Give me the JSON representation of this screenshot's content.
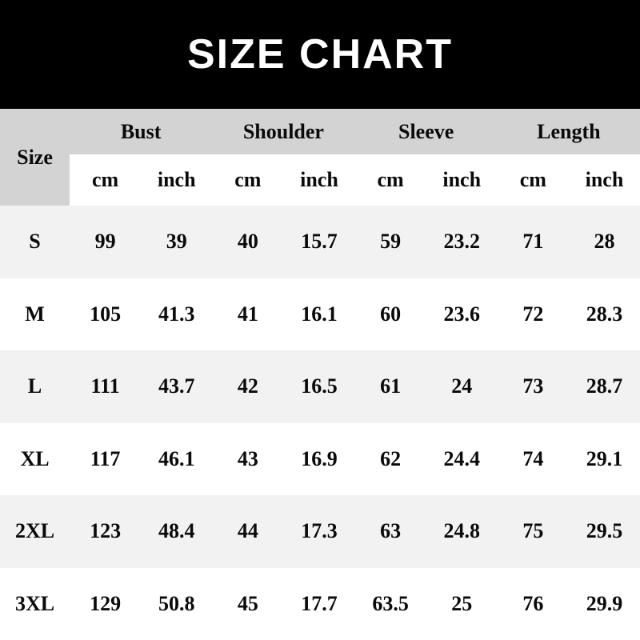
{
  "title": "SIZE CHART",
  "colors": {
    "title_bar_bg": "#000000",
    "title_text": "#ffffff",
    "group_header_bg": "#d3d3d3",
    "unit_row_bg": "#ffffff",
    "stripe_row_bg": "#f2f2f2",
    "plain_row_bg": "#ffffff",
    "table_text": "#0a0a0a"
  },
  "chart_data": {
    "type": "table",
    "title": "SIZE CHART",
    "size_column_header": "Size",
    "measure_groups": [
      "Bust",
      "Shoulder",
      "Sleeve",
      "Length"
    ],
    "unit_subheaders": [
      "cm",
      "inch",
      "cm",
      "inch",
      "cm",
      "inch",
      "cm",
      "inch"
    ],
    "rows": [
      {
        "size": "S",
        "values": [
          "99",
          "39",
          "40",
          "15.7",
          "59",
          "23.2",
          "71",
          "28"
        ]
      },
      {
        "size": "M",
        "values": [
          "105",
          "41.3",
          "41",
          "16.1",
          "60",
          "23.6",
          "72",
          "28.3"
        ]
      },
      {
        "size": "L",
        "values": [
          "111",
          "43.7",
          "42",
          "16.5",
          "61",
          "24",
          "73",
          "28.7"
        ]
      },
      {
        "size": "XL",
        "values": [
          "117",
          "46.1",
          "43",
          "16.9",
          "62",
          "24.4",
          "74",
          "29.1"
        ]
      },
      {
        "size": "2XL",
        "values": [
          "123",
          "48.4",
          "44",
          "17.3",
          "63",
          "24.8",
          "75",
          "29.5"
        ]
      },
      {
        "size": "3XL",
        "values": [
          "129",
          "50.8",
          "45",
          "17.7",
          "63.5",
          "25",
          "76",
          "29.9"
        ]
      }
    ]
  }
}
